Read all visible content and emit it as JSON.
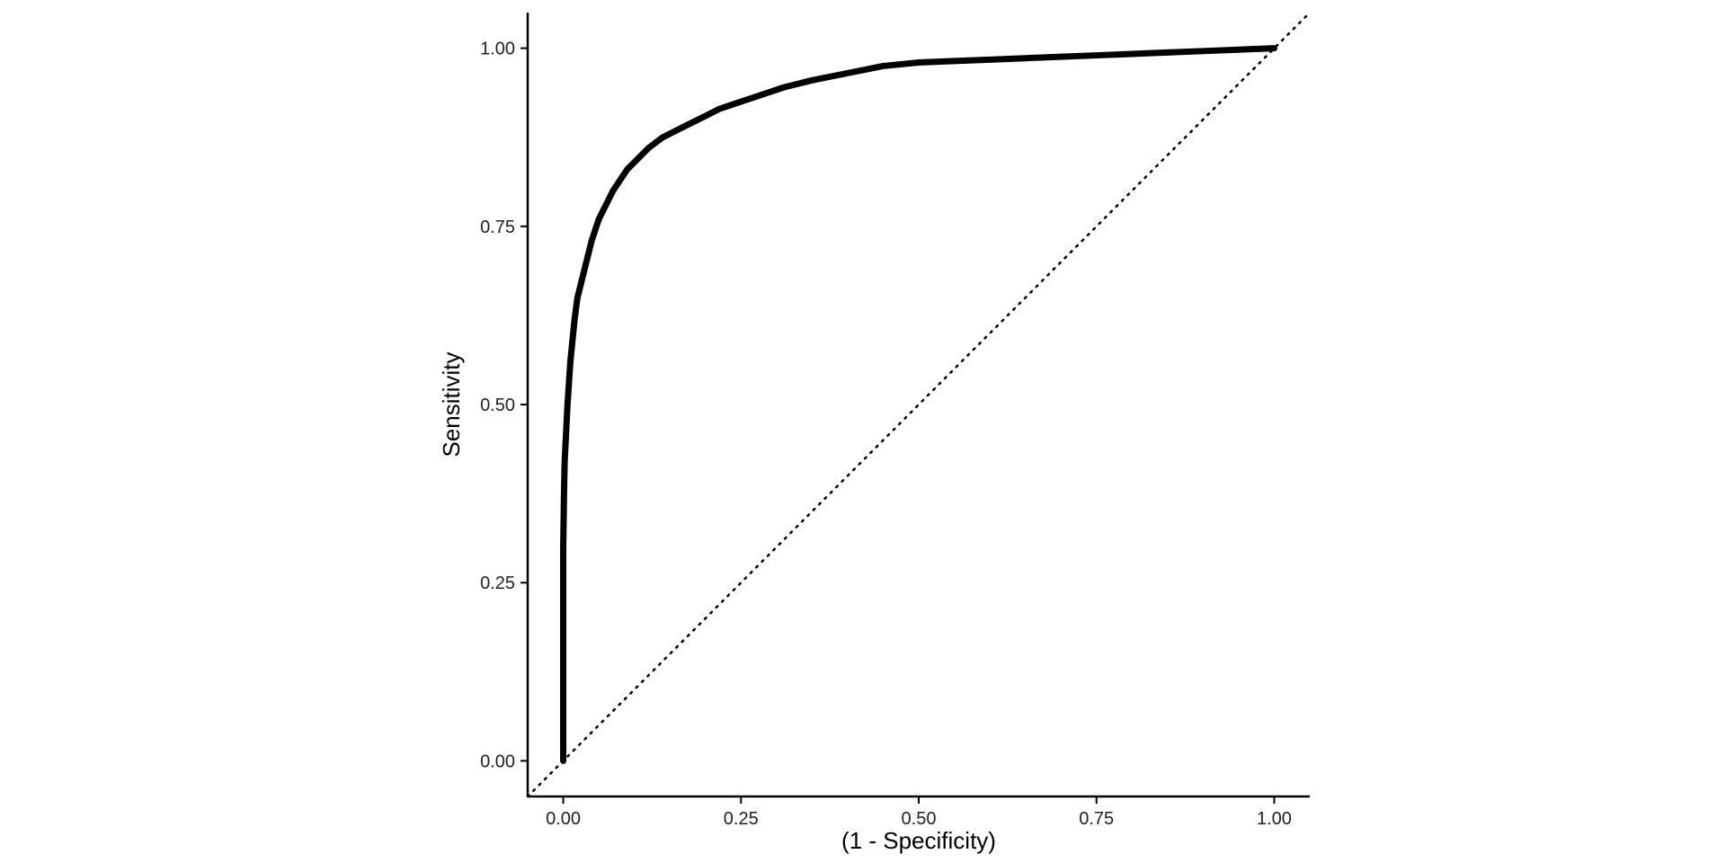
{
  "chart_data": {
    "type": "line",
    "title": "",
    "xlabel": "(1 - Specificity)",
    "ylabel": "Sensitivity",
    "xlim": [
      -0.05,
      1.05
    ],
    "ylim": [
      -0.05,
      1.05
    ],
    "x_ticks": [
      0.0,
      0.25,
      0.5,
      0.75,
      1.0
    ],
    "y_ticks": [
      0.0,
      0.25,
      0.5,
      0.75,
      1.0
    ],
    "x_tick_labels": [
      "0.00",
      "0.25",
      "0.50",
      "0.75",
      "1.00"
    ],
    "y_tick_labels": [
      "0.00",
      "0.25",
      "0.50",
      "0.75",
      "1.00"
    ],
    "grid": false,
    "reference_line": {
      "style": "dotted",
      "from": [
        -0.05,
        -0.05
      ],
      "to": [
        1.05,
        1.05
      ]
    },
    "series": [
      {
        "color": "#000000",
        "x": [
          0.0,
          0.0,
          0.0,
          0.001,
          0.002,
          0.004,
          0.006,
          0.008,
          0.01,
          0.013,
          0.016,
          0.02,
          0.025,
          0.03,
          0.035,
          0.04,
          0.05,
          0.06,
          0.07,
          0.08,
          0.09,
          0.1,
          0.12,
          0.14,
          0.16,
          0.18,
          0.2,
          0.22,
          0.25,
          0.28,
          0.31,
          0.35,
          0.4,
          0.45,
          0.5,
          0.55,
          0.6,
          0.65,
          0.7,
          0.75,
          0.8,
          0.85,
          0.9,
          0.95,
          1.0
        ],
        "y": [
          0.0,
          0.25,
          0.3,
          0.37,
          0.42,
          0.46,
          0.5,
          0.53,
          0.56,
          0.59,
          0.62,
          0.65,
          0.67,
          0.69,
          0.71,
          0.73,
          0.76,
          0.78,
          0.8,
          0.815,
          0.83,
          0.84,
          0.86,
          0.875,
          0.885,
          0.895,
          0.905,
          0.915,
          0.925,
          0.935,
          0.945,
          0.955,
          0.965,
          0.975,
          0.98,
          0.982,
          0.984,
          0.986,
          0.988,
          0.99,
          0.992,
          0.994,
          0.996,
          0.998,
          1.0
        ]
      }
    ]
  }
}
